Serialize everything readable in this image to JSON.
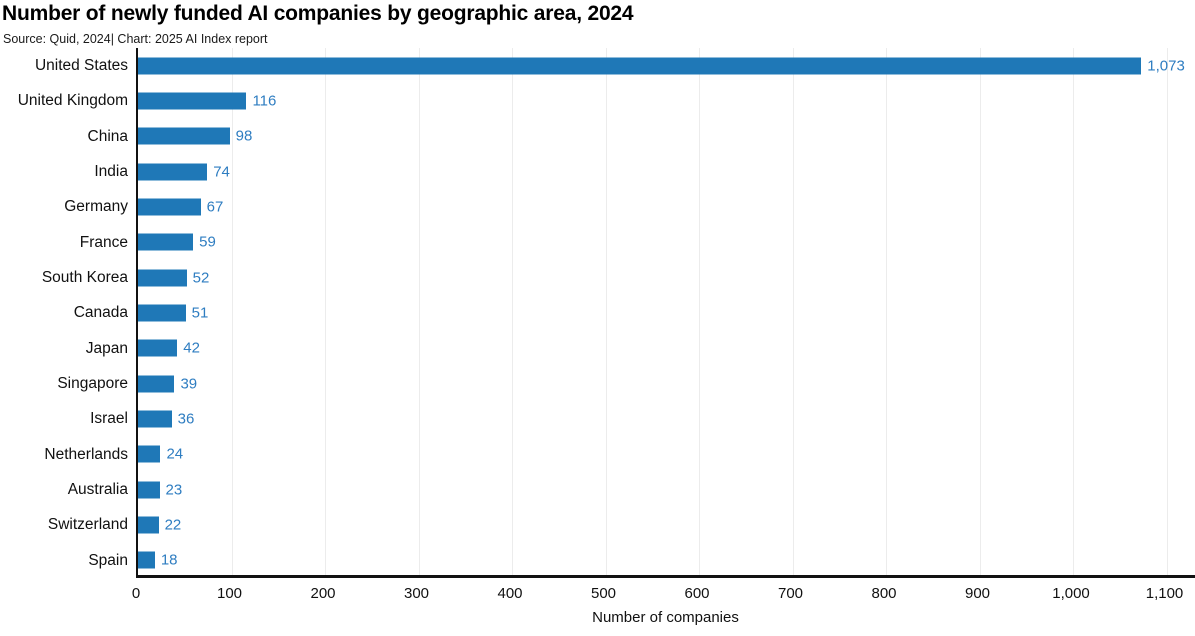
{
  "title": "Number of newly funded AI companies by geographic area, 2024",
  "source": "Source: Quid, 2024| Chart: 2025 AI Index report",
  "colors": {
    "bar": "#1f78b7",
    "value_label": "#2e7dc1",
    "gridline": "#ececec",
    "axis": "#111111"
  },
  "chart_data": {
    "type": "bar",
    "orientation": "horizontal",
    "title": "Number of newly funded AI companies by geographic area, 2024",
    "source": "Source: Quid, 2024| Chart: 2025 AI Index report",
    "categories": [
      "United States",
      "United Kingdom",
      "China",
      "India",
      "Germany",
      "France",
      "South Korea",
      "Canada",
      "Japan",
      "Singapore",
      "Israel",
      "Netherlands",
      "Australia",
      "Switzerland",
      "Spain"
    ],
    "values": [
      1073,
      116,
      98,
      74,
      67,
      59,
      52,
      51,
      42,
      39,
      36,
      24,
      23,
      22,
      18
    ],
    "value_labels": [
      "1,073",
      "116",
      "98",
      "74",
      "67",
      "59",
      "52",
      "51",
      "42",
      "39",
      "36",
      "24",
      "23",
      "22",
      "18"
    ],
    "xlabel": "Number of companies",
    "ylabel": "",
    "xlim": [
      0,
      1100
    ],
    "xticks": [
      "0",
      "100",
      "200",
      "300",
      "400",
      "500",
      "600",
      "700",
      "800",
      "900",
      "1,000",
      "1,100"
    ],
    "xtick_values": [
      0,
      100,
      200,
      300,
      400,
      500,
      600,
      700,
      800,
      900,
      1000,
      1100
    ],
    "grid": true,
    "legend": false
  }
}
